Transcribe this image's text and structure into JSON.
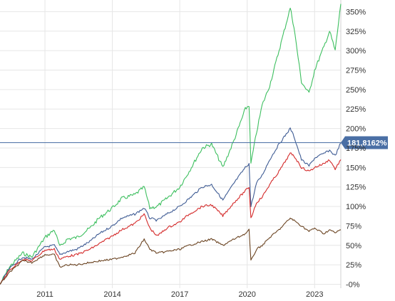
{
  "chart_data": {
    "type": "line",
    "title": "",
    "xlabel": "",
    "ylabel": "",
    "ylim": [
      -5,
      365
    ],
    "xlim": [
      "2009-01",
      "2024-03"
    ],
    "grid": true,
    "y_ticks": [
      0,
      25,
      50,
      75,
      100,
      125,
      150,
      175,
      200,
      225,
      250,
      275,
      300,
      325,
      350
    ],
    "y_tick_labels": [
      "-0%",
      "25%",
      "50%",
      "75%",
      "100%",
      "125%",
      "150%",
      "175%",
      "200%",
      "225%",
      "250%",
      "275%",
      "300%",
      "325%",
      "350%"
    ],
    "x_ticks": [
      "2011-01",
      "2014-01",
      "2017-01",
      "2020-01",
      "2023-01"
    ],
    "x_tick_labels": [
      "2011",
      "2014",
      "2017",
      "2020",
      "2023"
    ],
    "current_value_label": "181,8162%",
    "current_value": 181.8,
    "current_value_color": "#4a6fa5",
    "series": [
      {
        "color": "#3dbf5f",
        "points": [
          [
            "2009-01",
            0
          ],
          [
            "2009-06",
            22
          ],
          [
            "2010-01",
            40
          ],
          [
            "2010-06",
            35
          ],
          [
            "2011-01",
            60
          ],
          [
            "2011-06",
            70
          ],
          [
            "2011-09",
            48
          ],
          [
            "2012-01",
            58
          ],
          [
            "2012-06",
            60
          ],
          [
            "2013-01",
            72
          ],
          [
            "2013-06",
            85
          ],
          [
            "2014-01",
            98
          ],
          [
            "2014-06",
            110
          ],
          [
            "2015-01",
            115
          ],
          [
            "2015-06",
            125
          ],
          [
            "2015-09",
            98
          ],
          [
            "2016-01",
            100
          ],
          [
            "2016-06",
            110
          ],
          [
            "2017-01",
            125
          ],
          [
            "2017-06",
            145
          ],
          [
            "2018-01",
            175
          ],
          [
            "2018-06",
            180
          ],
          [
            "2018-12",
            150
          ],
          [
            "2019-06",
            185
          ],
          [
            "2019-12",
            225
          ],
          [
            "2020-02",
            230
          ],
          [
            "2020-03",
            155
          ],
          [
            "2020-06",
            195
          ],
          [
            "2020-09",
            230
          ],
          [
            "2021-01",
            255
          ],
          [
            "2021-06",
            300
          ],
          [
            "2021-12",
            355
          ],
          [
            "2022-02",
            330
          ],
          [
            "2022-06",
            260
          ],
          [
            "2022-10",
            245
          ],
          [
            "2023-01",
            275
          ],
          [
            "2023-06",
            305
          ],
          [
            "2023-09",
            325
          ],
          [
            "2023-12",
            300
          ],
          [
            "2024-03",
            360
          ]
        ]
      },
      {
        "color": "#3f5c94",
        "points": [
          [
            "2009-01",
            0
          ],
          [
            "2009-06",
            20
          ],
          [
            "2010-01",
            35
          ],
          [
            "2010-06",
            32
          ],
          [
            "2011-01",
            48
          ],
          [
            "2011-06",
            50
          ],
          [
            "2011-09",
            38
          ],
          [
            "2012-01",
            42
          ],
          [
            "2012-06",
            45
          ],
          [
            "2013-01",
            55
          ],
          [
            "2013-06",
            65
          ],
          [
            "2014-01",
            75
          ],
          [
            "2014-06",
            85
          ],
          [
            "2015-01",
            90
          ],
          [
            "2015-06",
            98
          ],
          [
            "2015-09",
            85
          ],
          [
            "2016-01",
            82
          ],
          [
            "2016-06",
            90
          ],
          [
            "2017-01",
            100
          ],
          [
            "2017-06",
            110
          ],
          [
            "2018-01",
            125
          ],
          [
            "2018-06",
            128
          ],
          [
            "2018-12",
            108
          ],
          [
            "2019-06",
            130
          ],
          [
            "2019-12",
            150
          ],
          [
            "2020-02",
            155
          ],
          [
            "2020-03",
            100
          ],
          [
            "2020-06",
            130
          ],
          [
            "2020-09",
            140
          ],
          [
            "2021-01",
            160
          ],
          [
            "2021-06",
            180
          ],
          [
            "2021-12",
            200
          ],
          [
            "2022-02",
            190
          ],
          [
            "2022-06",
            160
          ],
          [
            "2022-10",
            152
          ],
          [
            "2023-01",
            162
          ],
          [
            "2023-06",
            168
          ],
          [
            "2023-09",
            172
          ],
          [
            "2023-12",
            165
          ],
          [
            "2024-03",
            181.8
          ]
        ]
      },
      {
        "color": "#d42a2a",
        "points": [
          [
            "2009-01",
            0
          ],
          [
            "2009-06",
            18
          ],
          [
            "2010-01",
            32
          ],
          [
            "2010-06",
            30
          ],
          [
            "2011-01",
            44
          ],
          [
            "2011-06",
            45
          ],
          [
            "2011-09",
            32
          ],
          [
            "2012-01",
            36
          ],
          [
            "2012-06",
            38
          ],
          [
            "2013-01",
            45
          ],
          [
            "2013-06",
            52
          ],
          [
            "2014-01",
            62
          ],
          [
            "2014-06",
            70
          ],
          [
            "2015-01",
            78
          ],
          [
            "2015-06",
            90
          ],
          [
            "2015-09",
            72
          ],
          [
            "2016-01",
            62
          ],
          [
            "2016-06",
            72
          ],
          [
            "2017-01",
            80
          ],
          [
            "2017-06",
            90
          ],
          [
            "2018-01",
            100
          ],
          [
            "2018-06",
            102
          ],
          [
            "2018-12",
            88
          ],
          [
            "2019-06",
            105
          ],
          [
            "2019-12",
            120
          ],
          [
            "2020-02",
            125
          ],
          [
            "2020-03",
            85
          ],
          [
            "2020-06",
            105
          ],
          [
            "2020-09",
            112
          ],
          [
            "2021-01",
            128
          ],
          [
            "2021-06",
            145
          ],
          [
            "2021-12",
            168
          ],
          [
            "2022-02",
            165
          ],
          [
            "2022-06",
            150
          ],
          [
            "2022-10",
            145
          ],
          [
            "2023-01",
            150
          ],
          [
            "2023-06",
            155
          ],
          [
            "2023-09",
            160
          ],
          [
            "2023-12",
            148
          ],
          [
            "2024-03",
            160
          ]
        ]
      },
      {
        "color": "#6b4422",
        "points": [
          [
            "2009-01",
            0
          ],
          [
            "2009-06",
            15
          ],
          [
            "2010-01",
            30
          ],
          [
            "2010-06",
            28
          ],
          [
            "2011-01",
            38
          ],
          [
            "2011-06",
            38
          ],
          [
            "2011-09",
            22
          ],
          [
            "2012-01",
            25
          ],
          [
            "2012-06",
            25
          ],
          [
            "2013-01",
            28
          ],
          [
            "2013-06",
            30
          ],
          [
            "2014-01",
            32
          ],
          [
            "2014-06",
            35
          ],
          [
            "2015-01",
            40
          ],
          [
            "2015-06",
            58
          ],
          [
            "2015-09",
            45
          ],
          [
            "2016-01",
            40
          ],
          [
            "2016-06",
            42
          ],
          [
            "2017-01",
            45
          ],
          [
            "2017-06",
            50
          ],
          [
            "2018-01",
            55
          ],
          [
            "2018-06",
            58
          ],
          [
            "2018-12",
            50
          ],
          [
            "2019-06",
            58
          ],
          [
            "2019-12",
            65
          ],
          [
            "2020-02",
            70
          ],
          [
            "2020-03",
            30
          ],
          [
            "2020-06",
            45
          ],
          [
            "2020-09",
            50
          ],
          [
            "2021-01",
            60
          ],
          [
            "2021-06",
            70
          ],
          [
            "2021-12",
            85
          ],
          [
            "2022-02",
            82
          ],
          [
            "2022-06",
            75
          ],
          [
            "2022-10",
            68
          ],
          [
            "2023-01",
            72
          ],
          [
            "2023-06",
            65
          ],
          [
            "2023-09",
            70
          ],
          [
            "2023-12",
            66
          ],
          [
            "2024-03",
            70
          ]
        ]
      }
    ]
  }
}
